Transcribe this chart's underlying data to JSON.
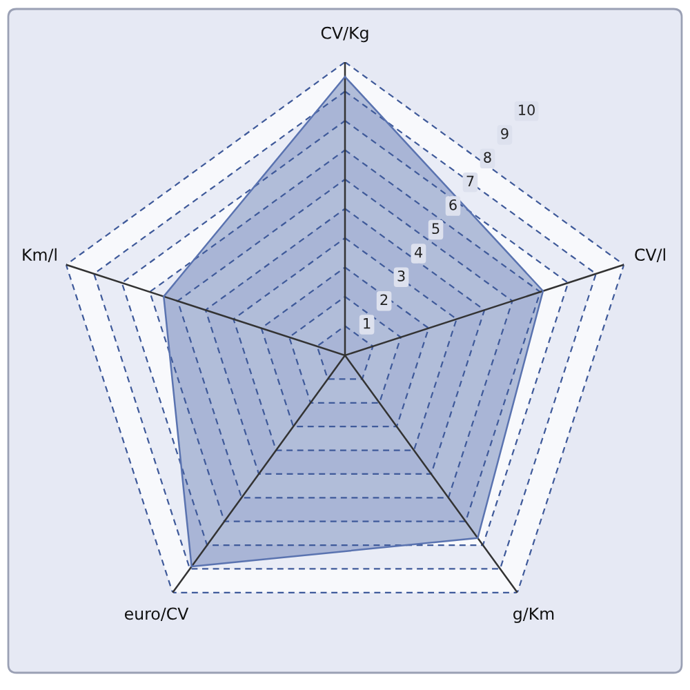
{
  "chart_data": {
    "type": "radar",
    "categories": [
      "CV/Kg",
      "CV/l",
      "g/Km",
      "euro/CV",
      "Km/l"
    ],
    "series": [
      {
        "color": "#5a73b0",
        "values": [
          9.5,
          7.1,
          7.7,
          8.9,
          6.5
        ]
      }
    ],
    "ylim": [
      0,
      10
    ],
    "yticks": [
      1,
      2,
      3,
      4,
      5,
      6,
      7,
      8,
      9,
      10
    ],
    "grid": true,
    "line_style": "solid",
    "marker": "none"
  }
}
